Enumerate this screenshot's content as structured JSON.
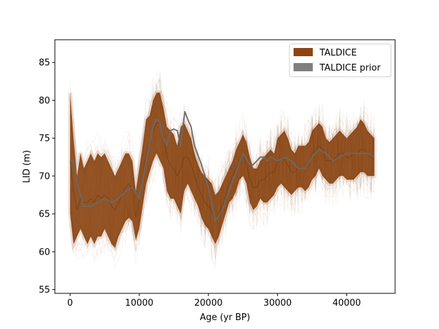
{
  "chart_data": {
    "type": "area",
    "title": "",
    "xlabel": "Age (yr BP)",
    "ylabel": "LID (m)",
    "xlim": [
      -2200,
      47000
    ],
    "ylim": [
      54.5,
      88
    ],
    "xticks": [
      0,
      10000,
      20000,
      30000,
      40000
    ],
    "xtick_labels": [
      "0",
      "10000",
      "20000",
      "30000",
      "40000"
    ],
    "yticks": [
      55,
      60,
      65,
      70,
      75,
      80,
      85
    ],
    "ytick_labels": [
      "55",
      "60",
      "65",
      "70",
      "75",
      "80",
      "85"
    ],
    "grid": false,
    "legend_position": "top-right",
    "series": [
      {
        "name": "TALDICE",
        "color": "#8b4513",
        "x": [
          0,
          500,
          1000,
          1500,
          2000,
          2500,
          3000,
          3500,
          4000,
          4500,
          5000,
          5500,
          6000,
          6500,
          7000,
          7500,
          8000,
          8500,
          9000,
          9500,
          10000,
          10500,
          11000,
          11500,
          12000,
          12500,
          13000,
          13500,
          14000,
          14500,
          15000,
          15500,
          16000,
          16500,
          17000,
          17500,
          18000,
          18500,
          19000,
          19500,
          20000,
          20500,
          21000,
          21500,
          22000,
          22500,
          23000,
          23500,
          24000,
          24500,
          25000,
          25500,
          26000,
          26500,
          27000,
          27500,
          28000,
          28500,
          29000,
          29500,
          30000,
          30500,
          31000,
          31500,
          32000,
          32500,
          33000,
          33500,
          34000,
          34500,
          35000,
          35500,
          36000,
          36500,
          37000,
          37500,
          38000,
          38500,
          39000,
          39500,
          40000,
          40500,
          41000,
          41500,
          42000,
          42500,
          43000,
          43500,
          44000
        ],
        "upper": [
          81,
          75,
          70,
          73,
          71,
          72,
          73,
          72,
          73,
          72.5,
          73,
          72,
          71,
          70,
          71,
          72,
          73,
          73,
          72,
          68,
          71,
          74,
          77.5,
          78,
          80,
          81,
          81,
          79,
          76.5,
          76,
          75.5,
          74,
          76.5,
          77,
          76,
          75,
          73,
          71.5,
          70.5,
          70,
          69.5,
          69,
          67.5,
          68,
          69,
          70,
          71,
          72,
          73.5,
          74.5,
          75.5,
          74.5,
          72.5,
          71,
          71,
          72,
          72.5,
          73,
          73.5,
          73,
          75,
          75.5,
          76,
          75,
          73.5,
          73,
          74,
          74,
          74,
          74.5,
          76,
          76.5,
          77,
          76.5,
          75,
          74.5,
          75,
          75.5,
          76,
          75.5,
          75,
          75.5,
          76,
          76.5,
          77.5,
          77,
          76,
          75.5,
          75
        ],
        "lower": [
          65,
          61,
          62,
          63,
          62,
          61,
          62,
          61,
          62,
          62,
          63,
          62,
          61,
          60.5,
          62,
          63,
          64,
          64.5,
          64,
          61.5,
          63,
          66,
          69,
          70.5,
          72,
          73,
          72,
          71,
          68,
          67,
          67,
          66,
          65,
          68,
          69,
          68,
          67,
          66,
          64.5,
          63.5,
          63,
          62,
          61,
          62,
          63.5,
          65,
          66.5,
          67,
          68,
          69.5,
          70,
          69,
          66.5,
          65.5,
          66,
          67,
          66.5,
          66.5,
          67,
          67.5,
          68.5,
          69,
          68.5,
          68,
          67.5,
          68,
          68.5,
          68.5,
          68,
          68.5,
          69.5,
          70,
          71,
          70,
          69.5,
          69,
          69,
          69.5,
          70,
          70,
          69.5,
          69.5,
          69.5,
          70,
          70.5,
          70.5,
          70,
          70,
          70
        ],
        "mean": [
          72,
          68,
          65.5,
          67,
          66.5,
          66.5,
          67,
          66.5,
          67.5,
          67,
          67.5,
          67,
          66,
          65.5,
          66.5,
          67.5,
          68.5,
          69,
          68,
          64.5,
          67,
          70,
          73,
          74.5,
          76,
          77,
          77,
          75.5,
          72.5,
          71.5,
          71,
          70,
          71,
          72.5,
          72.5,
          71.5,
          70,
          68.5,
          67.5,
          66.5,
          66,
          65.5,
          64,
          65,
          66,
          67.5,
          69,
          70,
          71,
          72,
          73,
          71.5,
          69.5,
          68.5,
          68.5,
          69.5,
          69.5,
          70,
          70.5,
          70.5,
          72,
          72.5,
          72,
          71.5,
          70.5,
          70.5,
          71,
          71,
          71,
          71.5,
          73,
          73.5,
          74,
          73.5,
          72,
          72,
          72,
          72.5,
          73,
          73,
          72.5,
          72.5,
          73,
          73,
          73.5,
          73.5,
          73,
          72.5,
          72.5
        ]
      },
      {
        "name": "TALDICE prior",
        "color": "#696969",
        "x": [
          0,
          500,
          1000,
          2000,
          3000,
          4000,
          5000,
          6000,
          7000,
          8000,
          9000,
          10000,
          11000,
          12000,
          12500,
          13000,
          13500,
          14000,
          14500,
          15000,
          15500,
          16000,
          16300,
          16600,
          17000,
          17500,
          18000,
          19000,
          20000,
          21000,
          22000,
          23000,
          24000,
          25000,
          26000,
          26500,
          27000,
          27500,
          28000,
          28500,
          29000,
          30000,
          31000,
          32000,
          33000,
          34000,
          35000,
          36000,
          37000,
          38000,
          39000,
          40000,
          41000,
          42000,
          43000,
          44000
        ],
        "values": [
          72,
          72,
          69,
          66,
          66,
          66.5,
          67,
          66.5,
          67,
          68,
          68.5,
          67,
          72,
          76.5,
          77.5,
          77,
          75,
          74,
          76,
          76.2,
          76,
          74,
          76.5,
          78.5,
          77.5,
          76.5,
          74,
          71.5,
          68.5,
          64,
          65.5,
          68,
          70.5,
          73,
          71.5,
          71.5,
          72,
          72.5,
          72.5,
          72,
          72.5,
          72,
          72.5,
          72,
          71,
          71,
          72.5,
          73.5,
          73,
          72,
          72.5,
          73,
          73,
          73,
          73,
          72.5
        ]
      }
    ]
  }
}
